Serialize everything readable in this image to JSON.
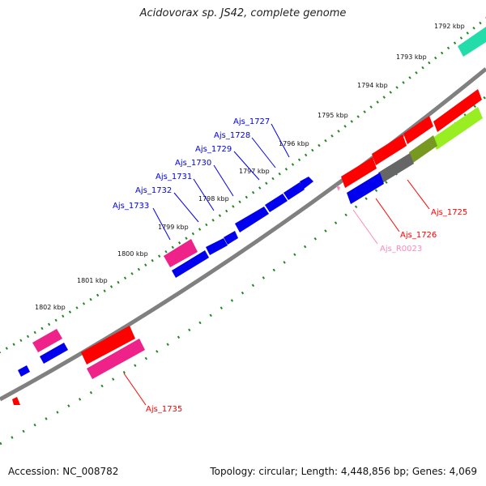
{
  "title": "Acidovorax sp. JS42, complete genome",
  "footer": {
    "accession": "Accession: NC_008782",
    "topology": "Topology: circular; Length: 4,448,856 bp; Genes: 4,069"
  },
  "kbp_labels": [
    "1792 kbp",
    "1793 kbp",
    "1794 kbp",
    "1795 kbp",
    "1796 kbp",
    "1797 kbp",
    "1798 kbp",
    "1799 kbp",
    "1800 kbp",
    "1801 kbp",
    "1802 kbp"
  ],
  "gene_labels": {
    "a1727": "Ajs_1727",
    "a1728": "Ajs_1728",
    "a1729": "Ajs_1729",
    "a1730": "Ajs_1730",
    "a1731": "Ajs_1731",
    "a1732": "Ajs_1732",
    "a1733": "Ajs_1733",
    "a1725": "Ajs_1725",
    "a1726": "Ajs_1726",
    "r0023": "Ajs_R0023",
    "a1735": "Ajs_1735"
  },
  "colors": {
    "cds": "#0000ee",
    "rrna": "#ff0000",
    "pink": "#ee2288",
    "rna_label": "#ff88bb",
    "backbone": "#808080",
    "tick": "#228822",
    "gray_gene": "#666666",
    "olive": "#779922",
    "lime": "#99ee22",
    "teal": "#22ddaa"
  }
}
